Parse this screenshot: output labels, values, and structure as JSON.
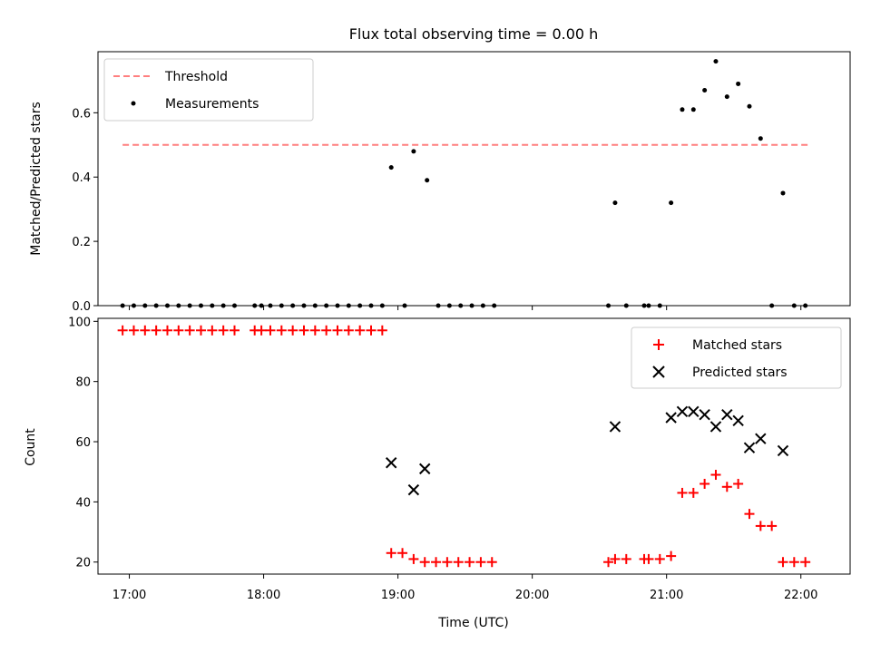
{
  "figure": {
    "title": "Flux total observing time = 0.00 h",
    "xlabel": "Time (UTC)"
  },
  "chart_data": [
    {
      "type": "scatter",
      "panel": "top",
      "ylabel": "Matched/Predicted stars",
      "x_range": [
        "16:46",
        "22:22"
      ],
      "ylim": [
        0,
        0.79
      ],
      "yticks": [
        "0.0",
        "0.2",
        "0.4",
        "0.6"
      ],
      "legend": {
        "placement": "top-left"
      },
      "threshold": {
        "name": "Threshold",
        "value": 0.5,
        "x_start": "16:57",
        "x_end": "22:03",
        "color": "#ff7f7f"
      },
      "series": [
        {
          "name": "Measurements",
          "color": "#000000",
          "points": [
            [
              "16:57",
              0
            ],
            [
              "17:02",
              0
            ],
            [
              "17:07",
              0
            ],
            [
              "17:12",
              0
            ],
            [
              "17:17",
              0
            ],
            [
              "17:22",
              0
            ],
            [
              "17:27",
              0
            ],
            [
              "17:32",
              0
            ],
            [
              "17:37",
              0
            ],
            [
              "17:42",
              0
            ],
            [
              "17:47",
              0
            ],
            [
              "17:56",
              0
            ],
            [
              "17:59",
              0
            ],
            [
              "18:03",
              0
            ],
            [
              "18:08",
              0
            ],
            [
              "18:13",
              0
            ],
            [
              "18:18",
              0
            ],
            [
              "18:23",
              0
            ],
            [
              "18:28",
              0
            ],
            [
              "18:33",
              0
            ],
            [
              "18:38",
              0
            ],
            [
              "18:43",
              0
            ],
            [
              "18:48",
              0
            ],
            [
              "18:53",
              0
            ],
            [
              "18:57",
              0.43
            ],
            [
              "19:03",
              0
            ],
            [
              "19:07",
              0.48
            ],
            [
              "19:13",
              0.39
            ],
            [
              "19:18",
              0
            ],
            [
              "19:23",
              0
            ],
            [
              "19:28",
              0
            ],
            [
              "19:33",
              0
            ],
            [
              "19:38",
              0
            ],
            [
              "19:43",
              0
            ],
            [
              "20:34",
              0
            ],
            [
              "20:37",
              0.32
            ],
            [
              "20:42",
              0
            ],
            [
              "20:50",
              0
            ],
            [
              "20:52",
              0
            ],
            [
              "20:57",
              0
            ],
            [
              "21:02",
              0.32
            ],
            [
              "21:07",
              0.61
            ],
            [
              "21:12",
              0.61
            ],
            [
              "21:17",
              0.67
            ],
            [
              "21:22",
              0.76
            ],
            [
              "21:27",
              0.65
            ],
            [
              "21:32",
              0.69
            ],
            [
              "21:37",
              0.62
            ],
            [
              "21:42",
              0.52
            ],
            [
              "21:47",
              0
            ],
            [
              "21:52",
              0.35
            ],
            [
              "21:57",
              0
            ],
            [
              "22:02",
              0
            ]
          ]
        }
      ]
    },
    {
      "type": "scatter",
      "panel": "bottom",
      "ylabel": "Count",
      "x_range": [
        "16:46",
        "22:22"
      ],
      "xticks": [
        "17:00",
        "18:00",
        "19:00",
        "20:00",
        "21:00",
        "22:00"
      ],
      "ylim": [
        16,
        101
      ],
      "yticks": [
        "20",
        "40",
        "60",
        "80",
        "100"
      ],
      "legend": {
        "placement": "top-right"
      },
      "series": [
        {
          "name": "Matched stars",
          "marker": "plus",
          "color": "#ff0000",
          "points": [
            [
              "16:57",
              97
            ],
            [
              "17:02",
              97
            ],
            [
              "17:07",
              97
            ],
            [
              "17:12",
              97
            ],
            [
              "17:17",
              97
            ],
            [
              "17:22",
              97
            ],
            [
              "17:27",
              97
            ],
            [
              "17:32",
              97
            ],
            [
              "17:37",
              97
            ],
            [
              "17:42",
              97
            ],
            [
              "17:47",
              97
            ],
            [
              "17:56",
              97
            ],
            [
              "17:59",
              97
            ],
            [
              "18:03",
              97
            ],
            [
              "18:08",
              97
            ],
            [
              "18:13",
              97
            ],
            [
              "18:18",
              97
            ],
            [
              "18:23",
              97
            ],
            [
              "18:28",
              97
            ],
            [
              "18:33",
              97
            ],
            [
              "18:38",
              97
            ],
            [
              "18:43",
              97
            ],
            [
              "18:48",
              97
            ],
            [
              "18:53",
              97
            ],
            [
              "18:57",
              23
            ],
            [
              "19:02",
              23
            ],
            [
              "19:07",
              21
            ],
            [
              "19:12",
              20
            ],
            [
              "19:17",
              20
            ],
            [
              "19:22",
              20
            ],
            [
              "19:27",
              20
            ],
            [
              "19:32",
              20
            ],
            [
              "19:37",
              20
            ],
            [
              "19:42",
              20
            ],
            [
              "20:34",
              20
            ],
            [
              "20:37",
              21
            ],
            [
              "20:42",
              21
            ],
            [
              "20:50",
              21
            ],
            [
              "20:52",
              21
            ],
            [
              "20:57",
              21
            ],
            [
              "21:02",
              22
            ],
            [
              "21:07",
              43
            ],
            [
              "21:12",
              43
            ],
            [
              "21:17",
              46
            ],
            [
              "21:22",
              49
            ],
            [
              "21:27",
              45
            ],
            [
              "21:32",
              46
            ],
            [
              "21:37",
              36
            ],
            [
              "21:42",
              32
            ],
            [
              "21:47",
              32
            ],
            [
              "21:52",
              20
            ],
            [
              "21:57",
              20
            ],
            [
              "22:02",
              20
            ]
          ]
        },
        {
          "name": "Predicted stars",
          "marker": "x",
          "color": "#000000",
          "points": [
            [
              "18:57",
              53
            ],
            [
              "19:07",
              44
            ],
            [
              "19:12",
              51
            ],
            [
              "20:37",
              65
            ],
            [
              "21:02",
              68
            ],
            [
              "21:07",
              70
            ],
            [
              "21:12",
              70
            ],
            [
              "21:17",
              69
            ],
            [
              "21:22",
              65
            ],
            [
              "21:27",
              69
            ],
            [
              "21:32",
              67
            ],
            [
              "21:37",
              58
            ],
            [
              "21:42",
              61
            ],
            [
              "21:52",
              57
            ]
          ]
        }
      ]
    }
  ]
}
